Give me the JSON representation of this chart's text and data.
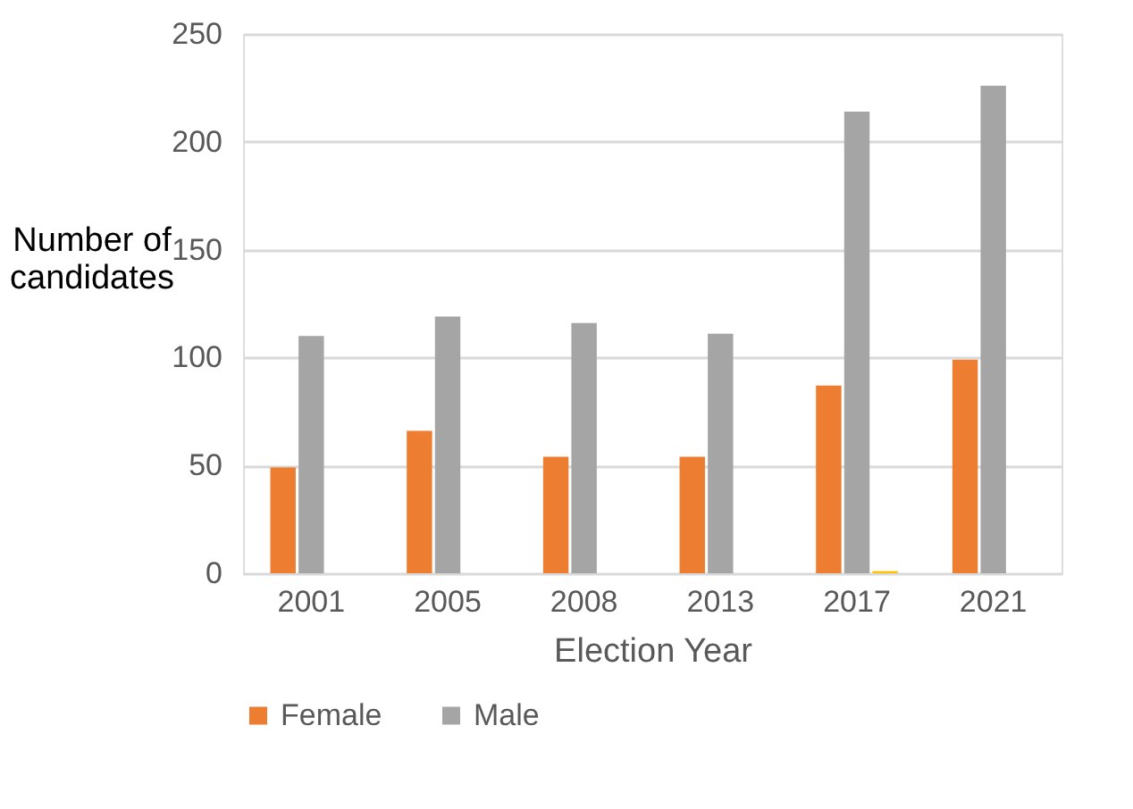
{
  "chart_data": {
    "type": "bar",
    "xlabel": "Election Year",
    "ylabel": "Number of candidates",
    "categories": [
      "2001",
      "2005",
      "2008",
      "2013",
      "2017",
      "2021"
    ],
    "series": [
      {
        "name": "Female",
        "color": "#ed7d31",
        "values": [
          49,
          66,
          54,
          54,
          87,
          99
        ]
      },
      {
        "name": "Male",
        "color": "#a5a5a5",
        "values": [
          110,
          119,
          116,
          111,
          214,
          226
        ]
      },
      {
        "color": "#ffc000",
        "values": [
          null,
          null,
          null,
          null,
          1,
          null
        ]
      }
    ],
    "ylim": [
      0,
      250
    ],
    "yticks": [
      0,
      50,
      100,
      150,
      200,
      250
    ],
    "grid": "y",
    "legend": "bottom"
  }
}
